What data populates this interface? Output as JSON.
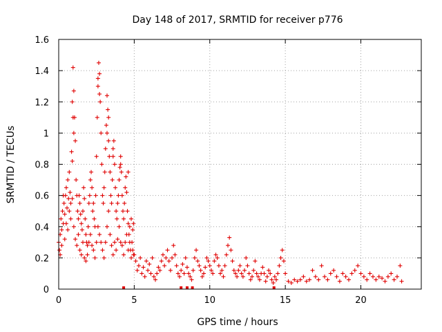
{
  "chart_data": {
    "type": "scatter",
    "title": "Day 148 of 2017, SRMTID for receiver p776",
    "xlabel": "GPS time / hours",
    "ylabel": "SRMTID / TECUs",
    "xlim": [
      0,
      24
    ],
    "ylim": [
      0,
      1.6
    ],
    "x_ticks": [
      0,
      5,
      10,
      15,
      20
    ],
    "x_tick_labels": [
      "0",
      "5",
      "10",
      "15",
      "20"
    ],
    "y_ticks": [
      0,
      0.2,
      0.4,
      0.6,
      0.8,
      1.0,
      1.2,
      1.4,
      1.6
    ],
    "y_tick_labels": [
      "0",
      "0.2",
      "0.4",
      "0.6",
      "0.8",
      "1",
      "1.2",
      "1.4",
      "1.6"
    ],
    "grid": true,
    "marker": "+",
    "colors": {
      "series": "#e00000",
      "grid": "#a0a0a0",
      "frame": "#000000"
    },
    "series": [
      {
        "name": "SRMTID",
        "points": [
          [
            0.0,
            0.3
          ],
          [
            0.05,
            0.25
          ],
          [
            0.1,
            0.35
          ],
          [
            0.15,
            0.45
          ],
          [
            0.2,
            0.38
          ],
          [
            0.25,
            0.5
          ],
          [
            0.3,
            0.42
          ],
          [
            0.35,
            0.55
          ],
          [
            0.4,
            0.48
          ],
          [
            0.45,
            0.6
          ],
          [
            0.5,
            0.65
          ],
          [
            0.55,
            0.52
          ],
          [
            0.6,
            0.7
          ],
          [
            0.65,
            0.58
          ],
          [
            0.7,
            0.75
          ],
          [
            0.75,
            0.62
          ],
          [
            0.8,
            0.55
          ],
          [
            0.85,
            0.88
          ],
          [
            0.9,
            0.82
          ],
          [
            0.95,
            1.42
          ],
          [
            1.0,
            1.27
          ],
          [
            1.05,
            1.1
          ],
          [
            1.1,
            0.95
          ],
          [
            1.15,
            0.7
          ],
          [
            1.2,
            0.6
          ],
          [
            1.25,
            0.5
          ],
          [
            1.3,
            0.45
          ],
          [
            1.35,
            0.6
          ],
          [
            1.4,
            0.55
          ],
          [
            1.45,
            0.48
          ],
          [
            1.5,
            0.42
          ],
          [
            1.55,
            0.38
          ],
          [
            1.6,
            0.5
          ],
          [
            1.65,
            0.65
          ],
          [
            1.7,
            0.58
          ],
          [
            1.75,
            0.45
          ],
          [
            1.8,
            0.35
          ],
          [
            1.85,
            0.3
          ],
          [
            1.9,
            0.28
          ],
          [
            1.95,
            0.4
          ],
          [
            2.0,
            0.55
          ],
          [
            2.05,
            0.6
          ],
          [
            2.1,
            0.7
          ],
          [
            2.15,
            0.75
          ],
          [
            2.2,
            0.65
          ],
          [
            2.25,
            0.5
          ],
          [
            2.3,
            0.55
          ],
          [
            2.35,
            0.45
          ],
          [
            2.4,
            0.4
          ],
          [
            2.45,
            0.6
          ],
          [
            2.5,
            0.85
          ],
          [
            2.55,
            1.1
          ],
          [
            2.6,
            1.3
          ],
          [
            2.65,
            1.45
          ],
          [
            2.7,
            1.38
          ],
          [
            2.75,
            1.2
          ],
          [
            2.8,
            1.0
          ],
          [
            2.85,
            0.8
          ],
          [
            2.9,
            0.6
          ],
          [
            2.95,
            0.55
          ],
          [
            3.0,
            0.65
          ],
          [
            3.05,
            0.75
          ],
          [
            3.1,
            0.9
          ],
          [
            3.15,
            1.05
          ],
          [
            3.2,
            1.24
          ],
          [
            3.25,
            1.15
          ],
          [
            3.3,
            0.95
          ],
          [
            3.35,
            0.85
          ],
          [
            3.4,
            0.75
          ],
          [
            3.45,
            0.6
          ],
          [
            3.5,
            0.55
          ],
          [
            3.55,
            0.7
          ],
          [
            3.6,
            0.85
          ],
          [
            3.65,
            0.95
          ],
          [
            3.7,
            0.8
          ],
          [
            3.75,
            0.65
          ],
          [
            3.8,
            0.5
          ],
          [
            3.85,
            0.45
          ],
          [
            3.9,
            0.55
          ],
          [
            3.95,
            0.6
          ],
          [
            4.0,
            0.7
          ],
          [
            4.05,
            0.78
          ],
          [
            4.1,
            0.85
          ],
          [
            4.15,
            0.75
          ],
          [
            4.2,
            0.6
          ],
          [
            4.25,
            0.5
          ],
          [
            4.3,
            0.45
          ],
          [
            4.35,
            0.55
          ],
          [
            4.4,
            0.65
          ],
          [
            4.45,
            0.72
          ],
          [
            4.5,
            0.62
          ],
          [
            4.55,
            0.5
          ],
          [
            4.6,
            0.42
          ],
          [
            4.65,
            0.35
          ],
          [
            4.7,
            0.3
          ],
          [
            4.75,
            0.25
          ],
          [
            4.8,
            0.2
          ],
          [
            4.85,
            0.3
          ],
          [
            4.9,
            0.25
          ],
          [
            4.95,
            0.22
          ],
          [
            0.1,
            0.22
          ],
          [
            0.2,
            0.28
          ],
          [
            0.3,
            0.6
          ],
          [
            0.4,
            0.32
          ],
          [
            0.5,
            0.42
          ],
          [
            0.6,
            0.38
          ],
          [
            0.7,
            0.5
          ],
          [
            0.8,
            0.45
          ],
          [
            0.9,
            0.58
          ],
          [
            1.0,
            0.4
          ],
          [
            1.1,
            0.32
          ],
          [
            1.2,
            0.28
          ],
          [
            1.3,
            0.35
          ],
          [
            1.4,
            0.25
          ],
          [
            1.5,
            0.22
          ],
          [
            1.6,
            0.3
          ],
          [
            1.7,
            0.2
          ],
          [
            1.8,
            0.18
          ],
          [
            1.9,
            0.22
          ],
          [
            2.0,
            0.3
          ],
          [
            2.1,
            0.35
          ],
          [
            2.2,
            0.28
          ],
          [
            2.3,
            0.25
          ],
          [
            2.4,
            0.2
          ],
          [
            2.5,
            0.3
          ],
          [
            2.6,
            0.4
          ],
          [
            2.7,
            0.35
          ],
          [
            2.8,
            0.3
          ],
          [
            2.9,
            0.25
          ],
          [
            3.0,
            0.2
          ],
          [
            3.1,
            0.3
          ],
          [
            3.2,
            0.4
          ],
          [
            3.3,
            0.5
          ],
          [
            3.4,
            0.35
          ],
          [
            3.5,
            0.28
          ],
          [
            3.6,
            0.22
          ],
          [
            3.7,
            0.3
          ],
          [
            3.8,
            0.25
          ],
          [
            3.9,
            0.32
          ],
          [
            4.0,
            0.4
          ],
          [
            4.1,
            0.3
          ],
          [
            4.2,
            0.28
          ],
          [
            4.3,
            0.22
          ],
          [
            4.4,
            0.3
          ],
          [
            4.5,
            0.35
          ],
          [
            4.6,
            0.25
          ],
          [
            4.7,
            0.4
          ],
          [
            4.8,
            0.45
          ],
          [
            4.9,
            0.38
          ],
          [
            4.95,
            0.42
          ],
          [
            0.9,
            1.2
          ],
          [
            1.0,
            1.0
          ],
          [
            0.95,
            1.1
          ],
          [
            2.6,
            1.35
          ],
          [
            2.7,
            1.25
          ],
          [
            3.2,
            1.0
          ],
          [
            3.3,
            1.1
          ],
          [
            3.6,
            0.9
          ],
          [
            4.1,
            0.8
          ],
          [
            4.6,
            0.75
          ],
          [
            5.0,
            0.22
          ],
          [
            5.1,
            0.18
          ],
          [
            5.2,
            0.12
          ],
          [
            5.3,
            0.15
          ],
          [
            5.4,
            0.2
          ],
          [
            5.5,
            0.1
          ],
          [
            5.6,
            0.14
          ],
          [
            5.7,
            0.08
          ],
          [
            5.8,
            0.18
          ],
          [
            5.9,
            0.12
          ],
          [
            6.0,
            0.16
          ],
          [
            6.1,
            0.1
          ],
          [
            6.2,
            0.2
          ],
          [
            6.3,
            0.08
          ],
          [
            6.4,
            0.06
          ],
          [
            6.5,
            0.1
          ],
          [
            6.6,
            0.14
          ],
          [
            6.7,
            0.12
          ],
          [
            6.8,
            0.18
          ],
          [
            6.9,
            0.22
          ],
          [
            7.0,
            0.15
          ],
          [
            7.1,
            0.2
          ],
          [
            7.2,
            0.25
          ],
          [
            7.3,
            0.18
          ],
          [
            7.4,
            0.12
          ],
          [
            7.5,
            0.2
          ],
          [
            7.6,
            0.28
          ],
          [
            7.7,
            0.22
          ],
          [
            7.8,
            0.15
          ],
          [
            7.9,
            0.1
          ],
          [
            8.0,
            0.08
          ],
          [
            8.1,
            0.12
          ],
          [
            8.2,
            0.16
          ],
          [
            8.3,
            0.1
          ],
          [
            8.4,
            0.2
          ],
          [
            8.5,
            0.14
          ],
          [
            8.6,
            0.1
          ],
          [
            8.7,
            0.08
          ],
          [
            8.8,
            0.06
          ],
          [
            8.9,
            0.12
          ],
          [
            9.0,
            0.2
          ],
          [
            9.1,
            0.25
          ],
          [
            9.2,
            0.18
          ],
          [
            9.3,
            0.15
          ],
          [
            9.4,
            0.12
          ],
          [
            9.5,
            0.08
          ],
          [
            9.6,
            0.1
          ],
          [
            9.7,
            0.14
          ],
          [
            9.8,
            0.2
          ],
          [
            9.9,
            0.18
          ],
          [
            10.0,
            0.15
          ],
          [
            10.1,
            0.12
          ],
          [
            10.2,
            0.1
          ],
          [
            10.3,
            0.18
          ],
          [
            10.4,
            0.22
          ],
          [
            10.5,
            0.2
          ],
          [
            10.6,
            0.15
          ],
          [
            10.7,
            0.1
          ],
          [
            10.8,
            0.12
          ],
          [
            10.9,
            0.08
          ],
          [
            11.0,
            0.15
          ],
          [
            11.1,
            0.22
          ],
          [
            11.2,
            0.28
          ],
          [
            11.3,
            0.33
          ],
          [
            11.4,
            0.25
          ],
          [
            11.5,
            0.18
          ],
          [
            11.6,
            0.12
          ],
          [
            11.7,
            0.1
          ],
          [
            11.8,
            0.08
          ],
          [
            11.9,
            0.12
          ],
          [
            12.0,
            0.15
          ],
          [
            12.1,
            0.1
          ],
          [
            12.2,
            0.08
          ],
          [
            12.3,
            0.12
          ],
          [
            12.4,
            0.2
          ],
          [
            12.5,
            0.15
          ],
          [
            12.6,
            0.1
          ],
          [
            12.7,
            0.06
          ],
          [
            12.8,
            0.08
          ],
          [
            12.9,
            0.12
          ],
          [
            13.0,
            0.18
          ],
          [
            13.1,
            0.1
          ],
          [
            13.2,
            0.08
          ],
          [
            13.3,
            0.06
          ],
          [
            13.4,
            0.1
          ],
          [
            13.5,
            0.14
          ],
          [
            13.6,
            0.1
          ],
          [
            13.7,
            0.05
          ],
          [
            13.8,
            0.08
          ],
          [
            13.9,
            0.12
          ],
          [
            14.0,
            0.1
          ],
          [
            14.1,
            0.06
          ],
          [
            14.2,
            0.04
          ],
          [
            14.3,
            0.08
          ],
          [
            14.4,
            0.06
          ],
          [
            14.5,
            0.1
          ],
          [
            14.6,
            0.15
          ],
          [
            14.7,
            0.2
          ],
          [
            14.8,
            0.25
          ],
          [
            14.9,
            0.18
          ],
          [
            15.0,
            0.1
          ],
          [
            15.2,
            0.05
          ],
          [
            15.4,
            0.04
          ],
          [
            15.6,
            0.06
          ],
          [
            15.8,
            0.05
          ],
          [
            16.0,
            0.06
          ],
          [
            16.2,
            0.08
          ],
          [
            16.4,
            0.05
          ],
          [
            16.6,
            0.06
          ],
          [
            16.8,
            0.12
          ],
          [
            17.0,
            0.08
          ],
          [
            17.2,
            0.06
          ],
          [
            17.4,
            0.15
          ],
          [
            17.6,
            0.08
          ],
          [
            17.8,
            0.06
          ],
          [
            18.0,
            0.1
          ],
          [
            18.2,
            0.12
          ],
          [
            18.4,
            0.08
          ],
          [
            18.6,
            0.05
          ],
          [
            18.8,
            0.1
          ],
          [
            19.0,
            0.08
          ],
          [
            19.2,
            0.06
          ],
          [
            19.4,
            0.1
          ],
          [
            19.6,
            0.12
          ],
          [
            19.8,
            0.15
          ],
          [
            20.0,
            0.1
          ],
          [
            20.2,
            0.08
          ],
          [
            20.4,
            0.06
          ],
          [
            20.6,
            0.1
          ],
          [
            20.8,
            0.08
          ],
          [
            21.0,
            0.06
          ],
          [
            21.2,
            0.08
          ],
          [
            21.4,
            0.07
          ],
          [
            21.6,
            0.05
          ],
          [
            21.8,
            0.08
          ],
          [
            22.0,
            0.1
          ],
          [
            22.2,
            0.06
          ],
          [
            22.4,
            0.08
          ],
          [
            22.6,
            0.15
          ],
          [
            22.7,
            0.05
          ]
        ]
      }
    ],
    "gap_markers_x": [
      4.3,
      8.1,
      8.5,
      8.85,
      14.25
    ]
  }
}
